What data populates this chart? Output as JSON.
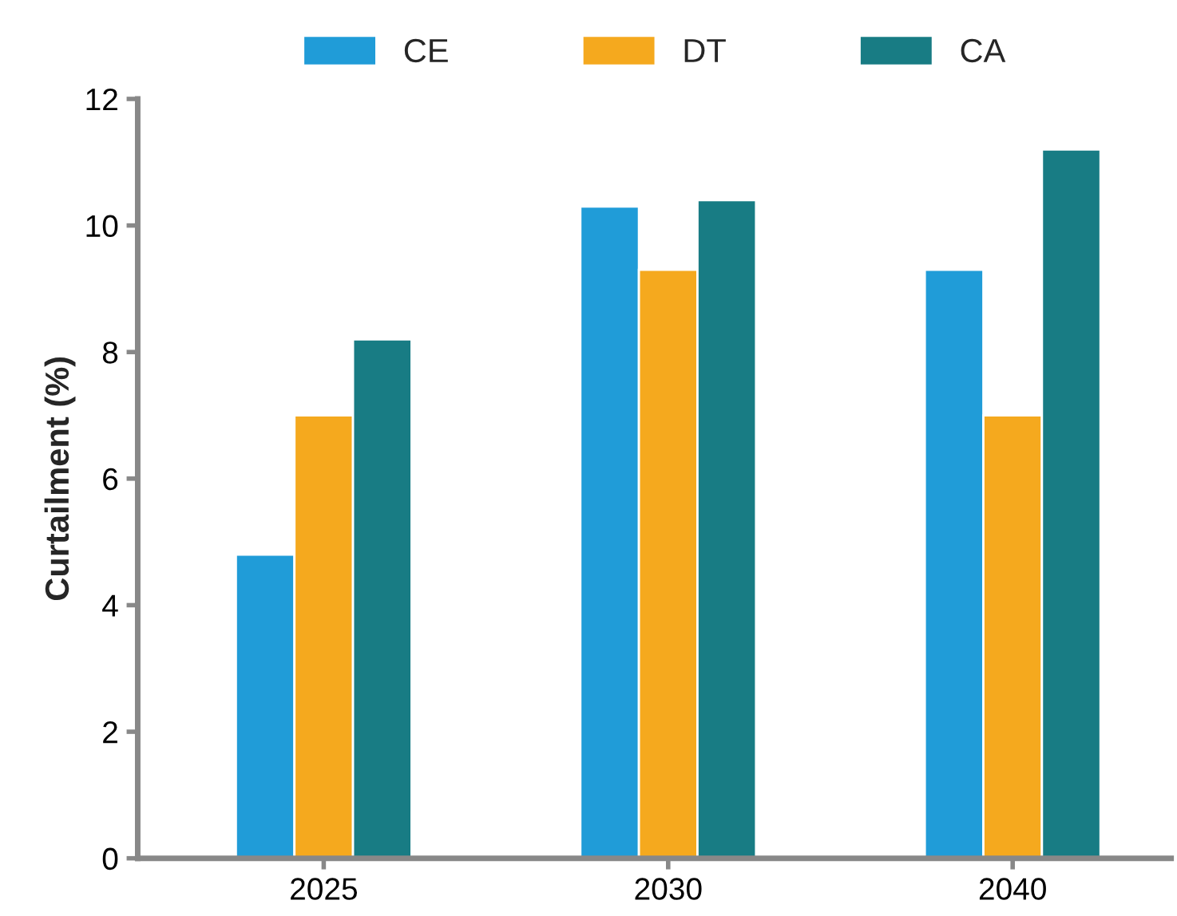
{
  "chart_data": {
    "type": "bar",
    "ylabel": "Curtailment (%)",
    "categories": [
      "2025",
      "2030",
      "2040"
    ],
    "series": [
      {
        "name": "CE",
        "color": "#209cd8",
        "values": [
          4.8,
          10.3,
          9.3
        ]
      },
      {
        "name": "DT",
        "color": "#f5a91e",
        "values": [
          7.0,
          9.3,
          7.0
        ]
      },
      {
        "name": "CA",
        "color": "#187c84",
        "values": [
          8.2,
          10.4,
          11.2
        ]
      }
    ],
    "ylim": [
      0,
      12
    ],
    "yticks": [
      0,
      2,
      4,
      6,
      8,
      10,
      12
    ],
    "grid": false,
    "legend": "top"
  }
}
